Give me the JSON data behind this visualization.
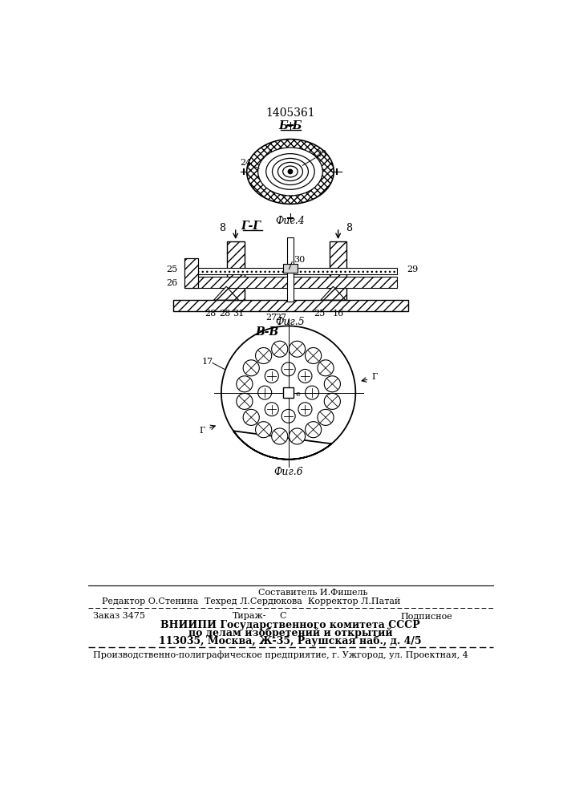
{
  "patent_number": "1405361",
  "bg_color": "#ffffff",
  "fig4_label": "Б-Б",
  "fig4_caption": "Фиг.4",
  "fig5_label": "Г-Г",
  "fig5_caption": "Фиг.5",
  "fig6_label": "В-В",
  "fig6_caption": "Фиг.6",
  "footer_line1": "Составитель И.Фишель",
  "footer_line2_left": "Редактор О.Стенина",
  "footer_line2_mid": "Техред Л.Сердюкова  Корректор Л.Патай",
  "footer_line3_left": "Заказ 3475",
  "footer_line3_mid": "Тираж-",
  "footer_line3_c": "С",
  "footer_line3_right": "Подписное",
  "footer_line4": "ВНИИПИ Государственного комитета СССР",
  "footer_line5": "по делам изобретений и открытий",
  "footer_line6": "113035, Москва, Ж-35, Раушская наб., д. 4/5",
  "footer_line7": "Производственно-полиграфическое предприятие, г. Ужгород, ул. Проектная, 4"
}
